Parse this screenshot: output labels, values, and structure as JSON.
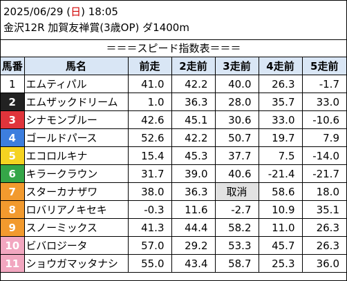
{
  "header": {
    "date_prefix": "2025/06/29 (",
    "weekday": "日",
    "date_suffix": ") 18:05",
    "race": "金沢12R 加賀友禅賞(3歳OP) ダ1400m"
  },
  "banner": "＝＝＝スピード指数表＝＝＝",
  "columns": [
    "馬番",
    "馬名",
    "前走",
    "2走前",
    "3走前",
    "4走前",
    "5走前"
  ],
  "rows": [
    {
      "num": "1",
      "name": "エムティパル",
      "v": [
        "41.0",
        "42.2",
        "40.0",
        "26.3",
        "-1.7"
      ],
      "bg": "#ffffff",
      "fg": "#000000"
    },
    {
      "num": "2",
      "name": "エムザックドリーム",
      "v": [
        "1.0",
        "36.3",
        "28.0",
        "35.7",
        "33.0"
      ],
      "bg": "#222222",
      "fg": "#ffffff"
    },
    {
      "num": "3",
      "name": "シナモンブルー",
      "v": [
        "42.6",
        "45.1",
        "30.6",
        "33.0",
        "-10.6"
      ],
      "bg": "#e0343b",
      "fg": "#ffffff"
    },
    {
      "num": "4",
      "name": "ゴールドパース",
      "v": [
        "52.6",
        "42.2",
        "50.7",
        "19.7",
        "7.9"
      ],
      "bg": "#3d7ede",
      "fg": "#ffffff"
    },
    {
      "num": "5",
      "name": "エコロルキナ",
      "v": [
        "15.4",
        "45.3",
        "37.7",
        "7.5",
        "-14.0"
      ],
      "bg": "#f5d321",
      "fg": "#ffffff"
    },
    {
      "num": "6",
      "name": "キラークラウン",
      "v": [
        "31.7",
        "39.0",
        "40.6",
        "-21.4",
        "-21.7"
      ],
      "bg": "#35a648",
      "fg": "#ffffff"
    },
    {
      "num": "7",
      "name": "スターカナザワ",
      "v": [
        "38.0",
        "36.3",
        "取消",
        "58.6",
        "18.0"
      ],
      "bg": "#f29a2e",
      "fg": "#ffffff",
      "scratch_col": 2
    },
    {
      "num": "8",
      "name": "ロバリアノキセキ",
      "v": [
        "-0.3",
        "11.6",
        "-2.7",
        "10.9",
        "35.1"
      ],
      "bg": "#f29a2e",
      "fg": "#ffffff"
    },
    {
      "num": "9",
      "name": "スノーミックス",
      "v": [
        "41.3",
        "44.4",
        "58.2",
        "11.0",
        "26.3"
      ],
      "bg": "#f29a2e",
      "fg": "#ffffff"
    },
    {
      "num": "10",
      "name": "ビバロジータ",
      "v": [
        "57.0",
        "29.2",
        "53.3",
        "45.7",
        "26.3"
      ],
      "bg": "#f2a7c0",
      "fg": "#ffffff"
    },
    {
      "num": "11",
      "name": "ショウガマッタナシ",
      "v": [
        "55.0",
        "43.4",
        "58.7",
        "25.3",
        "36.0"
      ],
      "bg": "#f2a7c0",
      "fg": "#ffffff"
    }
  ]
}
